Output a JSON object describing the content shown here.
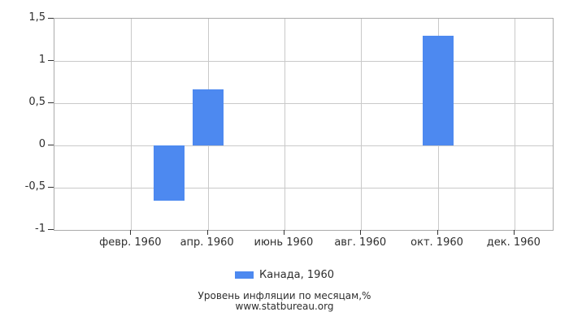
{
  "chart_data": {
    "type": "bar",
    "title": "Уровень инфляции по месяцам,%",
    "source": "www.statbureau.org",
    "legend": {
      "label": "Канада, 1960",
      "position": "bottom-center"
    },
    "ylim": [
      -1,
      1.5
    ],
    "x_domain_months": [
      0,
      13
    ],
    "grid": true,
    "y_ticks": [
      {
        "value": -1,
        "label": "-1"
      },
      {
        "value": -0.5,
        "label": "-0,5"
      },
      {
        "value": 0,
        "label": "0"
      },
      {
        "value": 0.5,
        "label": "0,5"
      },
      {
        "value": 1,
        "label": "1"
      },
      {
        "value": 1.5,
        "label": "1,5"
      }
    ],
    "x_ticks": [
      {
        "month": 2,
        "label": "февр. 1960"
      },
      {
        "month": 4,
        "label": "апр. 1960"
      },
      {
        "month": 6,
        "label": "июнь 1960"
      },
      {
        "month": 8,
        "label": "авг. 1960"
      },
      {
        "month": 10,
        "label": "окт. 1960"
      },
      {
        "month": 12,
        "label": "дек. 1960"
      }
    ],
    "bars": [
      {
        "month": 3,
        "value": -0.65
      },
      {
        "month": 4,
        "value": 0.66
      },
      {
        "month": 10,
        "value": 1.3
      }
    ]
  },
  "colors": {
    "bar": "#4d89f0",
    "grid": "#c9c9c9",
    "border": "#ababab",
    "tick": "#333333",
    "text": "#2e2e2e"
  }
}
